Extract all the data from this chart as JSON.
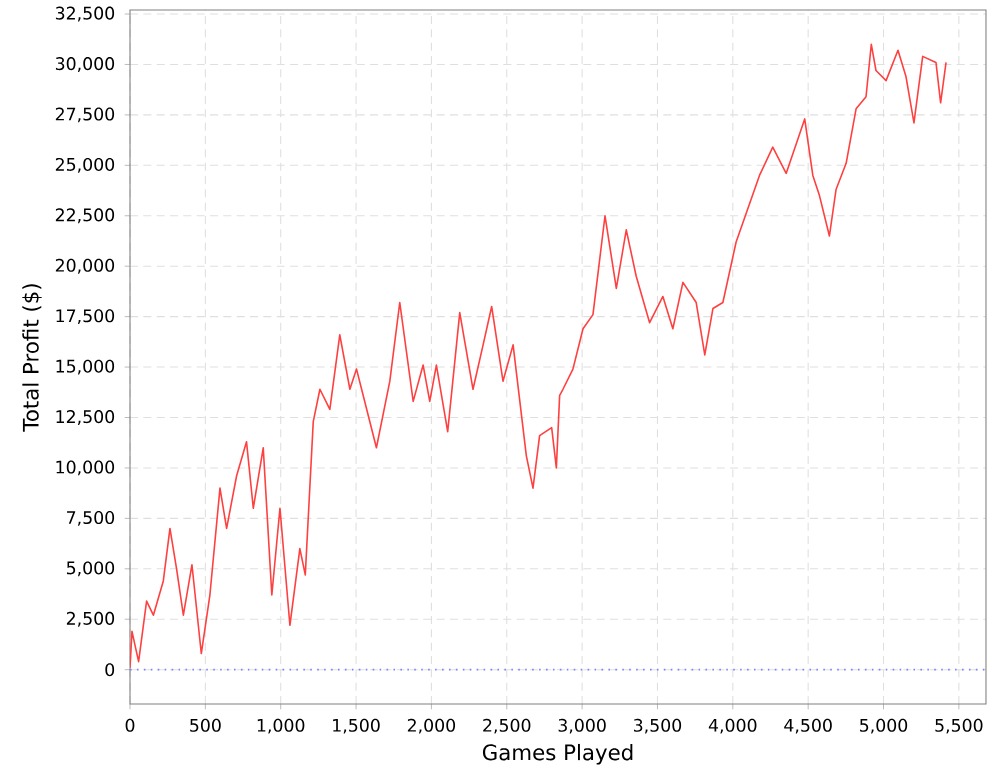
{
  "chart_data": {
    "type": "line",
    "xlabel": "Games Played",
    "ylabel": "Total Profit ($)",
    "xlim": [
      0,
      5680
    ],
    "ylim": [
      -1700,
      32700
    ],
    "xticks": [
      0,
      500,
      {
        "value": 1000,
        "label": "1,000"
      },
      {
        "value": 1500,
        "label": "1,500"
      },
      {
        "value": 2000,
        "label": "2,000"
      },
      {
        "value": 2500,
        "label": "2,500"
      },
      {
        "value": 3000,
        "label": "3,000"
      },
      {
        "value": 3500,
        "label": "3,500"
      },
      {
        "value": 4000,
        "label": "4,000"
      },
      {
        "value": 4500,
        "label": "4,500"
      },
      {
        "value": 5000,
        "label": "5,000"
      },
      {
        "value": 5500,
        "label": "5,500"
      }
    ],
    "yticks": [
      0,
      {
        "value": 2500,
        "label": "2,500"
      },
      {
        "value": 5000,
        "label": "5,000"
      },
      {
        "value": 7500,
        "label": "7,500"
      },
      {
        "value": 10000,
        "label": "10,000"
      },
      {
        "value": 12500,
        "label": "12,500"
      },
      {
        "value": 15000,
        "label": "15,000"
      },
      {
        "value": 17500,
        "label": "17,500"
      },
      {
        "value": 20000,
        "label": "20,000"
      },
      {
        "value": 22500,
        "label": "22,500"
      },
      {
        "value": 25000,
        "label": "25,000"
      },
      {
        "value": 27500,
        "label": "27,500"
      },
      {
        "value": 30000,
        "label": "30,000"
      },
      {
        "value": 32500,
        "label": "32,500"
      }
    ],
    "grid": true,
    "marker": "none",
    "line_style": "solid",
    "ref_lines": [
      {
        "axis": "y",
        "value": 0,
        "color": "#8080ff",
        "line_style": "dotted"
      }
    ],
    "series": [
      {
        "color": "#ff4040",
        "x": [
          0,
          13,
          57,
          110,
          155,
          221,
          265,
          309,
          354,
          411,
          473,
          530,
          597,
          641,
          707,
          773,
          818,
          884,
          941,
          995,
          1061,
          1127,
          1163,
          1216,
          1260,
          1326,
          1392,
          1459,
          1503,
          1547,
          1635,
          1724,
          1790,
          1879,
          1945,
          1989,
          2033,
          2108,
          2188,
          2276,
          2343,
          2400,
          2475,
          2542,
          2630,
          2674,
          2718,
          2798,
          2829,
          2851,
          2873,
          2939,
          3006,
          3072,
          3152,
          3227,
          3293,
          3359,
          3448,
          3536,
          3602,
          3669,
          3757,
          3814,
          3868,
          3934,
          4022,
          4177,
          4265,
          4354,
          4477,
          4531,
          4575,
          4641,
          4685,
          4752,
          4818,
          4884,
          4919,
          4950,
          5017,
          5096,
          5149,
          5202,
          5260,
          5348,
          5379,
          5415
        ],
        "values": [
          100,
          1900,
          400,
          3400,
          2700,
          4400,
          7000,
          5000,
          2700,
          5200,
          800,
          3700,
          9000,
          7000,
          9600,
          11300,
          8000,
          11000,
          3700,
          8000,
          2200,
          6000,
          4700,
          12300,
          13900,
          12900,
          16600,
          13900,
          14900,
          13600,
          11000,
          14300,
          18200,
          13300,
          15100,
          13300,
          15100,
          11800,
          17700,
          13900,
          16100,
          18000,
          14300,
          16100,
          10600,
          9000,
          11600,
          12000,
          10000,
          13600,
          13900,
          14900,
          16900,
          17600,
          22500,
          18900,
          21800,
          19500,
          17200,
          18500,
          16900,
          19200,
          18200,
          15600,
          17900,
          18200,
          21200,
          24500,
          25900,
          24600,
          27300,
          24500,
          23500,
          21500,
          23800,
          25100,
          27800,
          28400,
          31000,
          29700,
          29200,
          30700,
          29400,
          27100,
          30400,
          30100,
          28100,
          30100
        ]
      }
    ]
  }
}
